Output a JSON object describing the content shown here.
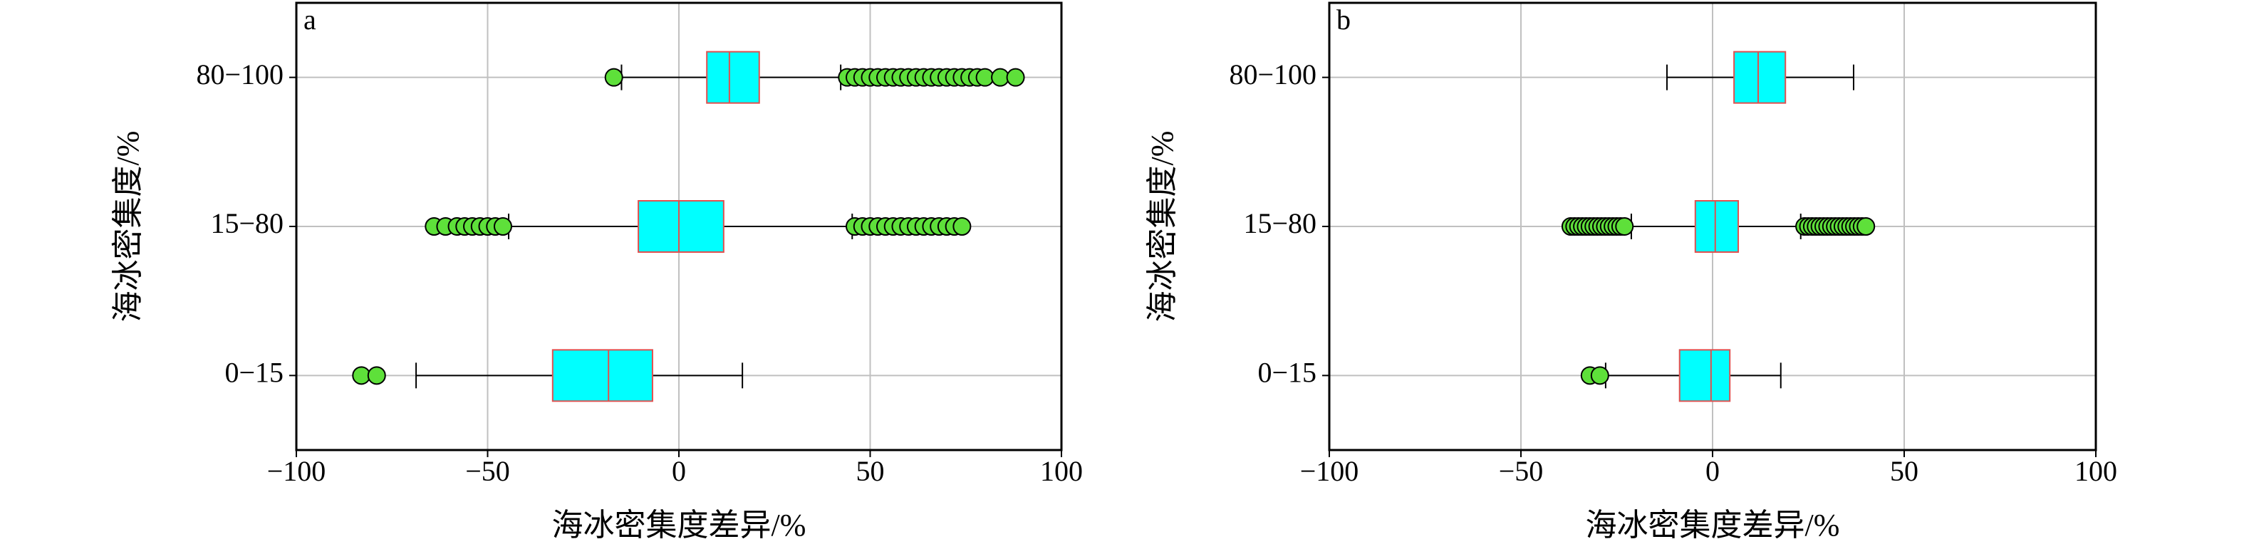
{
  "chart_data": [
    {
      "type": "box",
      "panel_label": "a",
      "xlabel": "海冰密集度差异/%",
      "ylabel": "海冰密集度/%",
      "categories": [
        "0−15",
        "15−80",
        "80−100"
      ],
      "xlim": [
        -100,
        100
      ],
      "xticks": [
        {
          "value": -100,
          "label": "−100"
        },
        {
          "value": -50,
          "label": "−50"
        },
        0,
        50,
        100
      ],
      "grid": true,
      "box_color": "#00ffff",
      "edge_color": "#e0504f",
      "flier_color": "#5ee03a",
      "whislo": [
        -68.7,
        -44.5,
        -15
      ],
      "q1": [
        -33,
        -10.6,
        7.3
      ],
      "median": [
        -18.4,
        0,
        13.2
      ],
      "q3": [
        -6.9,
        11.7,
        21
      ],
      "whishi": [
        16.6,
        45.3,
        42.3
      ],
      "fliers": [
        [
          -83,
          -79
        ],
        [
          -64,
          -61,
          -58,
          -56,
          -54,
          -52,
          -50,
          -48,
          -46,
          46,
          48,
          50,
          52,
          54,
          56,
          58,
          60,
          62,
          64,
          66,
          68,
          70,
          72,
          74
        ],
        [
          -17,
          44,
          46,
          48,
          50,
          52,
          54,
          56,
          58,
          60,
          62,
          64,
          66,
          68,
          70,
          72,
          74,
          76,
          78,
          80,
          84,
          88
        ]
      ]
    },
    {
      "type": "box",
      "panel_label": "b",
      "xlabel": "海冰密集度差异/%",
      "ylabel": "海冰密集度/%",
      "categories": [
        "0−15",
        "15−80",
        "80−100"
      ],
      "xlim": [
        -100,
        100
      ],
      "xticks": [
        {
          "value": -100,
          "label": "−100"
        },
        {
          "value": -50,
          "label": "−50"
        },
        0,
        50,
        100
      ],
      "grid": true,
      "box_color": "#00ffff",
      "edge_color": "#e0504f",
      "flier_color": "#5ee03a",
      "whislo": [
        -27.9,
        -21.2,
        -11.9
      ],
      "q1": [
        -8.6,
        -4.5,
        5.6
      ],
      "median": [
        -0.4,
        0.7,
        11.9
      ],
      "q3": [
        4.5,
        6.7,
        19
      ],
      "whishi": [
        17.8,
        23,
        36.8
      ],
      "fliers": [
        [
          -32,
          -29.4
        ],
        [
          -37,
          -36,
          -35,
          -34,
          -33,
          -32,
          -31,
          -30,
          -29,
          -28,
          -27,
          -26,
          -25,
          -24,
          -23,
          24,
          25,
          26,
          27,
          28,
          29,
          30,
          31,
          32,
          33,
          34,
          35,
          36,
          37,
          38,
          39,
          40
        ],
        []
      ]
    }
  ]
}
